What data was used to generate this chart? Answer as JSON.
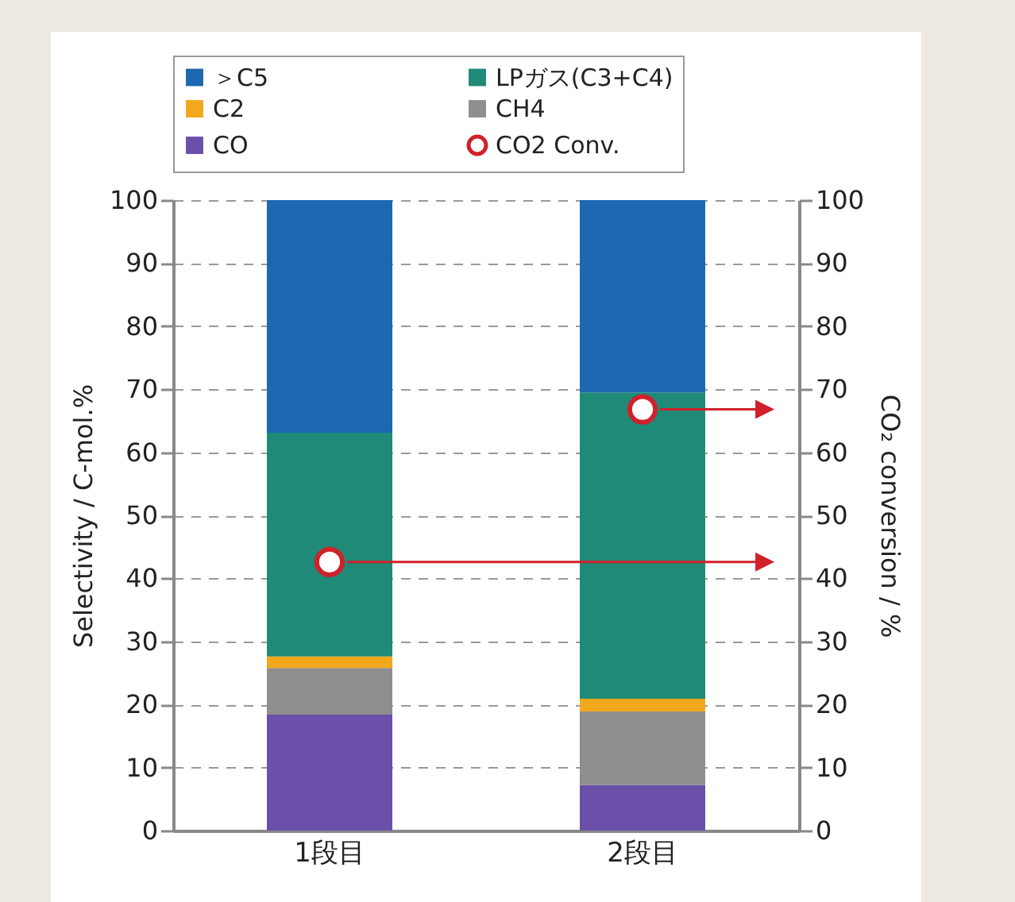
{
  "chart_data": {
    "type": "bar",
    "stacked": true,
    "categories": [
      "1段目",
      "2段目"
    ],
    "ylabel": "Selectivity / C-mol.%",
    "y2label": "CO₂ conversion / %",
    "ylim": [
      0,
      100
    ],
    "yticks": [
      0,
      10,
      20,
      30,
      40,
      50,
      60,
      70,
      80,
      90,
      100
    ],
    "y2lim": [
      0,
      100
    ],
    "y2ticks": [
      0,
      10,
      20,
      30,
      40,
      50,
      60,
      70,
      80,
      90,
      100
    ],
    "grid": "y",
    "legend": "top",
    "series": [
      {
        "name": "CO",
        "color": "#6a50a8",
        "values": [
          18.4,
          7.2
        ]
      },
      {
        "name": "CH4",
        "color": "#8e8e8e",
        "values": [
          7.4,
          11.7
        ]
      },
      {
        "name": "C2",
        "color": "#f2a81c",
        "values": [
          1.8,
          2.0
        ]
      },
      {
        "name": "LPガス(C3+C4)",
        "color": "#1f8a78",
        "values": [
          35.5,
          48.6
        ]
      },
      {
        "name": "＞C5",
        "color": "#1d68b0",
        "values": [
          36.9,
          30.5
        ]
      },
      {
        "name": "CO2 Conv.",
        "type": "scatter",
        "axis": "y2",
        "marker": "circle",
        "color": "#d0202a",
        "x": [
          "1段目",
          "2段目"
        ],
        "values": [
          42.6,
          66.8
        ]
      }
    ]
  }
}
